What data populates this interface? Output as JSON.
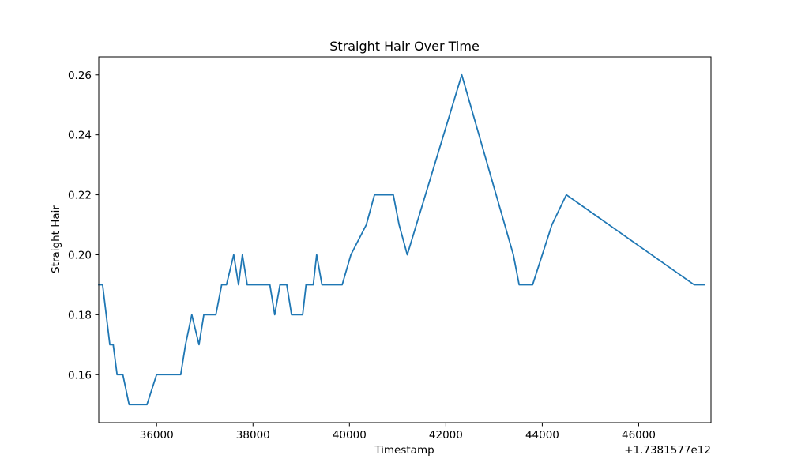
{
  "chart_data": {
    "type": "line",
    "title": "Straight Hair Over Time",
    "xlabel": "Timestamp",
    "ylabel": "Straight Hair",
    "x_offset_label": "+1.7381577e12",
    "xlim": [
      34800,
      47500
    ],
    "ylim": [
      0.144,
      0.266
    ],
    "xticks": [
      36000,
      38000,
      40000,
      42000,
      44000,
      46000
    ],
    "xtick_labels": [
      "36000",
      "38000",
      "40000",
      "42000",
      "44000",
      "46000"
    ],
    "yticks": [
      0.16,
      0.18,
      0.2,
      0.22,
      0.24,
      0.26
    ],
    "ytick_labels": [
      "0.16",
      "0.18",
      "0.20",
      "0.22",
      "0.24",
      "0.26"
    ],
    "grid": false,
    "series": [
      {
        "color": "#1f77b4",
        "points": [
          [
            34800,
            0.19
          ],
          [
            34880,
            0.19
          ],
          [
            35030,
            0.17
          ],
          [
            35100,
            0.17
          ],
          [
            35180,
            0.16
          ],
          [
            35300,
            0.16
          ],
          [
            35430,
            0.15
          ],
          [
            35800,
            0.15
          ],
          [
            36000,
            0.16
          ],
          [
            36500,
            0.16
          ],
          [
            36600,
            0.17
          ],
          [
            36730,
            0.18
          ],
          [
            36880,
            0.17
          ],
          [
            36980,
            0.18
          ],
          [
            37230,
            0.18
          ],
          [
            37350,
            0.19
          ],
          [
            37450,
            0.19
          ],
          [
            37600,
            0.2
          ],
          [
            37700,
            0.19
          ],
          [
            37780,
            0.2
          ],
          [
            37880,
            0.19
          ],
          [
            38350,
            0.19
          ],
          [
            38450,
            0.18
          ],
          [
            38560,
            0.19
          ],
          [
            38700,
            0.19
          ],
          [
            38800,
            0.18
          ],
          [
            39030,
            0.18
          ],
          [
            39100,
            0.19
          ],
          [
            39250,
            0.19
          ],
          [
            39320,
            0.2
          ],
          [
            39430,
            0.19
          ],
          [
            39850,
            0.19
          ],
          [
            40030,
            0.2
          ],
          [
            40350,
            0.21
          ],
          [
            40520,
            0.22
          ],
          [
            40910,
            0.22
          ],
          [
            41030,
            0.21
          ],
          [
            41200,
            0.2
          ],
          [
            42330,
            0.26
          ],
          [
            43400,
            0.2
          ],
          [
            43520,
            0.19
          ],
          [
            43800,
            0.19
          ],
          [
            44200,
            0.21
          ],
          [
            44500,
            0.22
          ],
          [
            47150,
            0.19
          ],
          [
            47370,
            0.19
          ]
        ]
      }
    ]
  }
}
